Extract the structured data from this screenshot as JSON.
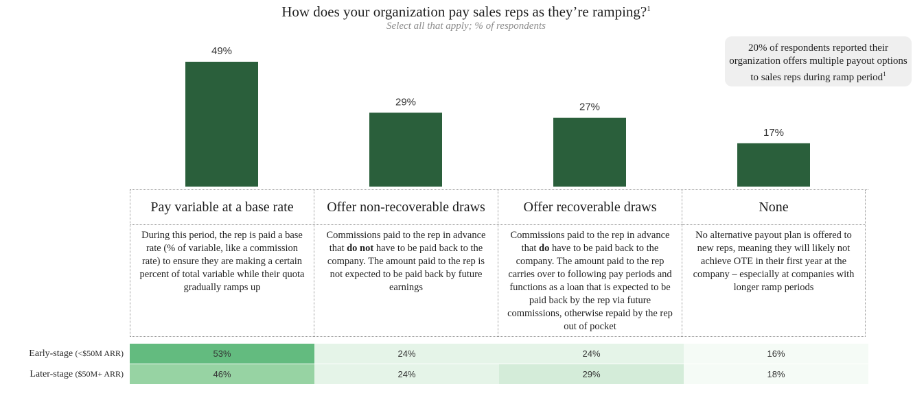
{
  "chart_data": {
    "type": "bar",
    "title": "How does your organization pay sales reps as they’re ramping?",
    "title_note": "1",
    "subtitle": "Select all that apply; % of respondents",
    "categories": [
      "Pay variable at a base rate",
      "Offer non-recoverable draws",
      "Offer recoverable draws",
      "None"
    ],
    "values": [
      49,
      29,
      27,
      17
    ],
    "value_labels": [
      "49%",
      "29%",
      "27%",
      "17%"
    ],
    "ylim": [
      0,
      50
    ],
    "bar_color": "#2a5f3b",
    "grid": false
  },
  "callout": {
    "text": "20% of respondents reported their organization offers multiple payout options to sales reps during ramp period",
    "note": "1"
  },
  "descriptions": [
    {
      "parts": [
        {
          "t": "During this period, the rep is paid a base rate (% of variable, like a commission rate) to ensure they are making a certain percent of total variable while their quota gradually ramps up",
          "b": false
        }
      ]
    },
    {
      "parts": [
        {
          "t": "Commissions paid to the rep in advance that ",
          "b": false
        },
        {
          "t": "do not",
          "b": true
        },
        {
          "t": " have to be paid back to the company. The amount paid to the rep is not expected to be paid back by future earnings",
          "b": false
        }
      ]
    },
    {
      "parts": [
        {
          "t": "Commissions paid to the rep in advance that ",
          "b": false
        },
        {
          "t": "do",
          "b": true
        },
        {
          "t": " have to be paid back to the company. The amount paid to the rep carries over to following pay periods and functions as a loan that is expected to be paid back by the rep via future commissions, otherwise repaid by the rep out of pocket",
          "b": false
        }
      ]
    },
    {
      "parts": [
        {
          "t": "No alternative payout plan is offered to new reps, meaning they will likely not achieve OTE in their first year at the company – especially at companies with longer ramp periods",
          "b": false
        }
      ]
    }
  ],
  "stage_table": {
    "rows": [
      {
        "label": "Early-stage",
        "qualifier": "(<$50M ARR)",
        "values": [
          53,
          24,
          24,
          16
        ],
        "value_labels": [
          "53%",
          "24%",
          "24%",
          "16%"
        ]
      },
      {
        "label": "Later-stage",
        "qualifier": "($50M+ ARR)",
        "values": [
          46,
          24,
          29,
          18
        ],
        "value_labels": [
          "46%",
          "24%",
          "29%",
          "18%"
        ]
      }
    ],
    "heat_colors": {
      "high": "#63bb7f",
      "mid": "#97d3a3",
      "low": "#d4ecd9",
      "lower": "#e5f4e8",
      "lowest": "#f5fbf6"
    }
  }
}
